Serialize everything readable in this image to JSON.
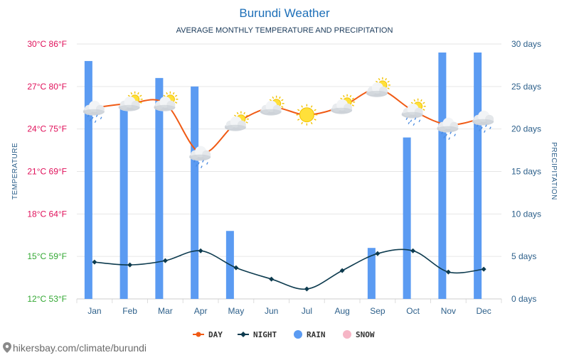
{
  "header": {
    "title": "Burundi Weather",
    "subtitle": "AVERAGE MONTHLY TEMPERATURE AND PRECIPITATION"
  },
  "footer": {
    "url": "hikersbay.com/climate/burundi"
  },
  "colors": {
    "day": "#f05a14",
    "night": "#0d3b4f",
    "rain": "#5b9bf2",
    "snow": "#f6b6c6",
    "grid": "#e6e6e6",
    "tick_warm": "#e0105a",
    "tick_cool": "#33a833",
    "right_ticks": "#2c5f8a"
  },
  "chart_data": {
    "type": "line",
    "title": "Burundi Weather",
    "subtitle": "AVERAGE MONTHLY TEMPERATURE AND PRECIPITATION",
    "categories": [
      "Jan",
      "Feb",
      "Mar",
      "Apr",
      "May",
      "Jun",
      "Jul",
      "Aug",
      "Sep",
      "Oct",
      "Nov",
      "Dec"
    ],
    "y_left": {
      "label": "TEMPERATURE",
      "range": [
        12,
        30
      ],
      "ticks": [
        "30°C 86°F",
        "27°C 80°F",
        "24°C 75°F",
        "21°C 69°F",
        "18°C 64°F",
        "15°C 59°F",
        "12°C 53°F"
      ]
    },
    "y_right": {
      "label": "PRECIPITATION",
      "range": [
        0,
        30
      ],
      "ticks": [
        "30 days",
        "25 days",
        "20 days",
        "15 days",
        "10 days",
        "5 days",
        "0 days"
      ]
    },
    "series": [
      {
        "name": "DAY",
        "axis": "left",
        "values": [
          25.5,
          25.8,
          25.8,
          22.3,
          24.4,
          25.5,
          25.0,
          25.6,
          26.8,
          25.3,
          24.3,
          24.8
        ]
      },
      {
        "name": "NIGHT",
        "axis": "left",
        "values": [
          14.6,
          14.4,
          14.7,
          15.4,
          14.2,
          13.4,
          12.7,
          14.0,
          15.2,
          15.4,
          13.9,
          14.1
        ]
      },
      {
        "name": "RAIN",
        "axis": "right",
        "type": "bar",
        "values": [
          28,
          23,
          26,
          25,
          8,
          0,
          0,
          0,
          6,
          19,
          29,
          29
        ]
      },
      {
        "name": "SNOW",
        "axis": "right",
        "type": "bar",
        "values": [
          0,
          0,
          0,
          0,
          0,
          0,
          0,
          0,
          0,
          0,
          0,
          0
        ]
      }
    ],
    "weather_icons": [
      "cloud-rain",
      "cloud-sun",
      "cloud-sun",
      "cloud-rain",
      "cloud-sun",
      "cloud-sun",
      "sun",
      "cloud-sun",
      "cloud-sun",
      "cloud-sun-rain",
      "cloud-rain",
      "cloud-rain"
    ],
    "legend": {
      "position": "bottom",
      "items": [
        "DAY",
        "NIGHT",
        "RAIN",
        "SNOW"
      ]
    },
    "grid": true
  }
}
